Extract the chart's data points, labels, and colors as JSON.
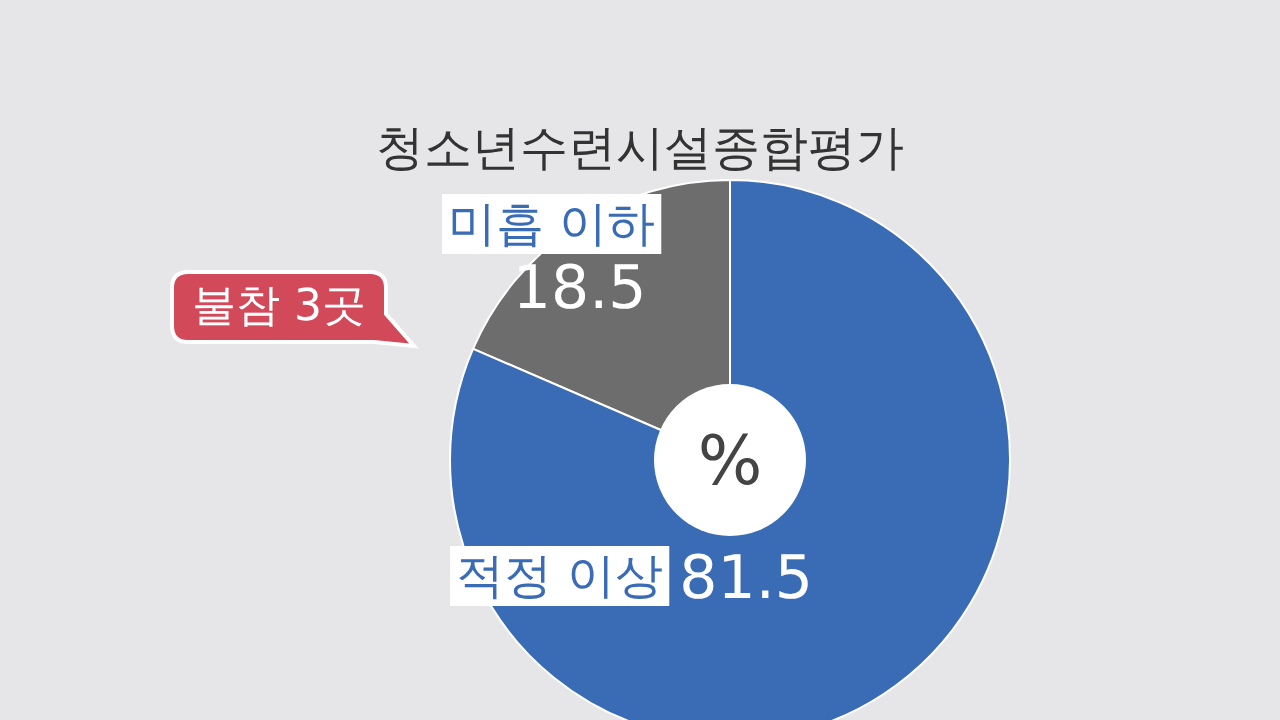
{
  "chart_data": {
    "type": "donut",
    "title": "청소년수련시설종합평가",
    "categories": [
      "미흡 이하",
      "적정 이상"
    ],
    "values": [
      18.5,
      81.5
    ],
    "colors": [
      "#6d6d6d",
      "#3a6bb5"
    ],
    "data_labels": true,
    "annotations": [
      "%",
      "불참 3곳"
    ]
  }
}
